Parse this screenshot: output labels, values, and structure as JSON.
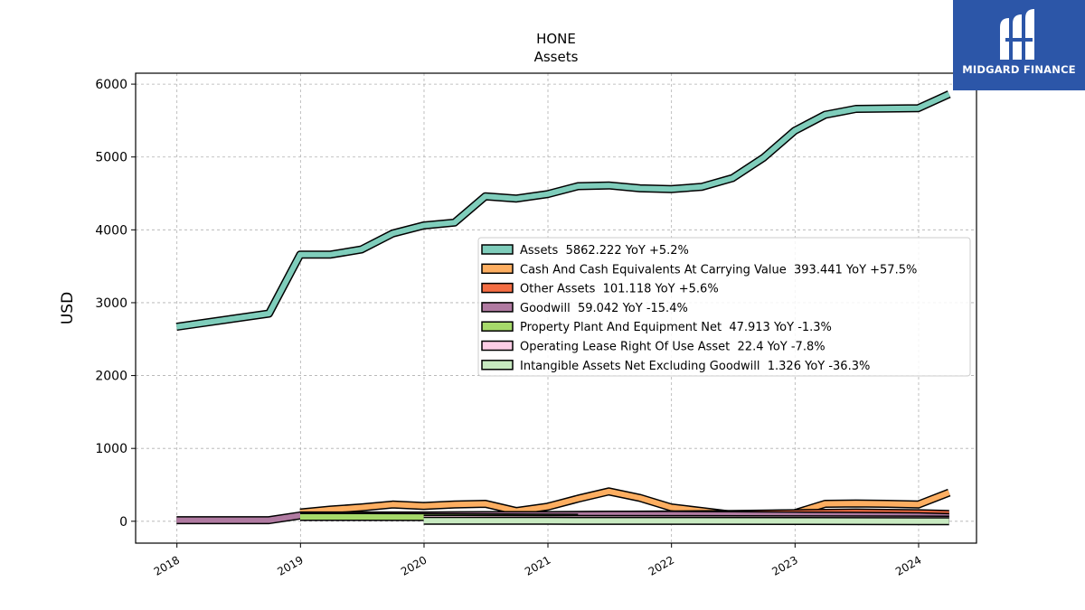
{
  "brand": {
    "name": "MIDGARD FINANCE",
    "color": "#2c56a8",
    "icon": "midgard-logo-icon"
  },
  "chart_data": {
    "type": "line",
    "title": "HONE",
    "subtitle": "Assets",
    "ylabel": "USD",
    "xlabel": "",
    "ylim": [
      -300,
      6150
    ],
    "xlim": [
      "2017-09-01",
      "2024-06-20"
    ],
    "yticks": [
      0,
      1000,
      2000,
      3000,
      4000,
      5000,
      6000
    ],
    "xticks": [
      "2018",
      "2019",
      "2020",
      "2021",
      "2022",
      "2023",
      "2024"
    ],
    "grid": true,
    "legend_position": "center-right",
    "series": [
      {
        "name": "Assets",
        "legend_label": "Assets  5862.222 YoY +5.2%",
        "color": "#7fcdbb",
        "x": [
          "2017-12-31",
          "2018-09-30",
          "2018-12-31",
          "2019-03-31",
          "2019-06-30",
          "2019-09-30",
          "2019-12-31",
          "2020-03-31",
          "2020-06-30",
          "2020-09-30",
          "2020-12-31",
          "2021-03-31",
          "2021-06-30",
          "2021-09-30",
          "2021-12-31",
          "2022-03-31",
          "2022-06-30",
          "2022-09-30",
          "2022-12-31",
          "2023-03-31",
          "2023-06-30",
          "2023-09-30",
          "2023-12-31",
          "2024-03-31"
        ],
        "values": [
          2670,
          2850,
          3660,
          3660,
          3730,
          3950,
          4060,
          4100,
          4460,
          4430,
          4490,
          4600,
          4610,
          4570,
          4560,
          4590,
          4710,
          4990,
          5360,
          5580,
          5660,
          5665,
          5670,
          5862
        ]
      },
      {
        "name": "Cash And Cash Equivalents At Carrying Value",
        "legend_label": "Cash And Cash Equivalents At Carrying Value  393.441 YoY +57.5%",
        "color": "#fdae61",
        "x": [
          "2018-12-31",
          "2019-03-31",
          "2019-06-30",
          "2019-09-30",
          "2019-12-31",
          "2020-03-31",
          "2020-06-30",
          "2020-09-30",
          "2020-12-31",
          "2021-03-31",
          "2021-06-30",
          "2021-09-30",
          "2021-12-31",
          "2022-03-31",
          "2022-06-30",
          "2022-09-30",
          "2022-12-31",
          "2023-03-31",
          "2023-06-30",
          "2023-09-30",
          "2023-12-31",
          "2024-03-31"
        ],
        "values": [
          120,
          160,
          190,
          230,
          210,
          230,
          240,
          140,
          200,
          310,
          410,
          320,
          190,
          140,
          90,
          100,
          110,
          240,
          245,
          240,
          230,
          393
        ]
      },
      {
        "name": "Other Assets",
        "legend_label": "Other Assets  101.118 YoY +5.6%",
        "color": "#f46d43",
        "x": [
          "2018-12-31",
          "2019-06-30",
          "2019-12-31",
          "2020-06-30",
          "2020-12-31",
          "2021-06-30",
          "2021-12-31",
          "2022-06-30",
          "2022-12-31",
          "2023-06-30",
          "2023-12-31",
          "2024-03-31"
        ],
        "values": [
          60,
          70,
          75,
          80,
          85,
          90,
          95,
          100,
          110,
          120,
          110,
          101
        ]
      },
      {
        "name": "Goodwill",
        "legend_label": "Goodwill  59.042 YoY -15.4%",
        "color": "#b07aa1",
        "x": [
          "2017-12-31",
          "2018-09-30",
          "2018-12-31",
          "2019-06-30",
          "2019-12-31",
          "2020-06-30",
          "2020-12-31",
          "2021-06-30",
          "2021-12-31",
          "2022-06-30",
          "2022-12-31",
          "2023-06-30",
          "2023-12-31",
          "2024-03-31"
        ],
        "values": [
          15,
          15,
          80,
          80,
          80,
          85,
          85,
          90,
          90,
          85,
          80,
          75,
          70,
          59
        ]
      },
      {
        "name": "Property Plant And Equipment Net",
        "legend_label": "Property Plant And Equipment Net  47.913 YoY -1.3%",
        "color": "#a6d96a",
        "x": [
          "2018-12-31",
          "2019-06-30",
          "2019-12-31",
          "2020-06-30",
          "2020-12-31",
          "2021-03-31"
        ],
        "values": [
          60,
          60,
          58,
          55,
          50,
          48
        ]
      },
      {
        "name": "Operating Lease Right Of Use Asset",
        "legend_label": "Operating Lease Right Of Use Asset  22.4 YoY -7.8%",
        "color": "#fccde5",
        "x": [
          "2019-12-31",
          "2020-12-31",
          "2021-12-31",
          "2022-12-31",
          "2023-12-31",
          "2024-03-31"
        ],
        "values": [
          35,
          32,
          30,
          28,
          24,
          22.4
        ]
      },
      {
        "name": "Intangible Assets Net Excluding Goodwill",
        "legend_label": "Intangible Assets Net Excluding Goodwill  1.326 YoY -36.3%",
        "color": "#c7e9c0",
        "x": [
          "2019-12-31",
          "2020-12-31",
          "2021-12-31",
          "2022-12-31",
          "2023-12-31",
          "2024-03-31"
        ],
        "values": [
          8,
          6,
          5,
          4,
          2,
          1.326
        ]
      }
    ]
  }
}
